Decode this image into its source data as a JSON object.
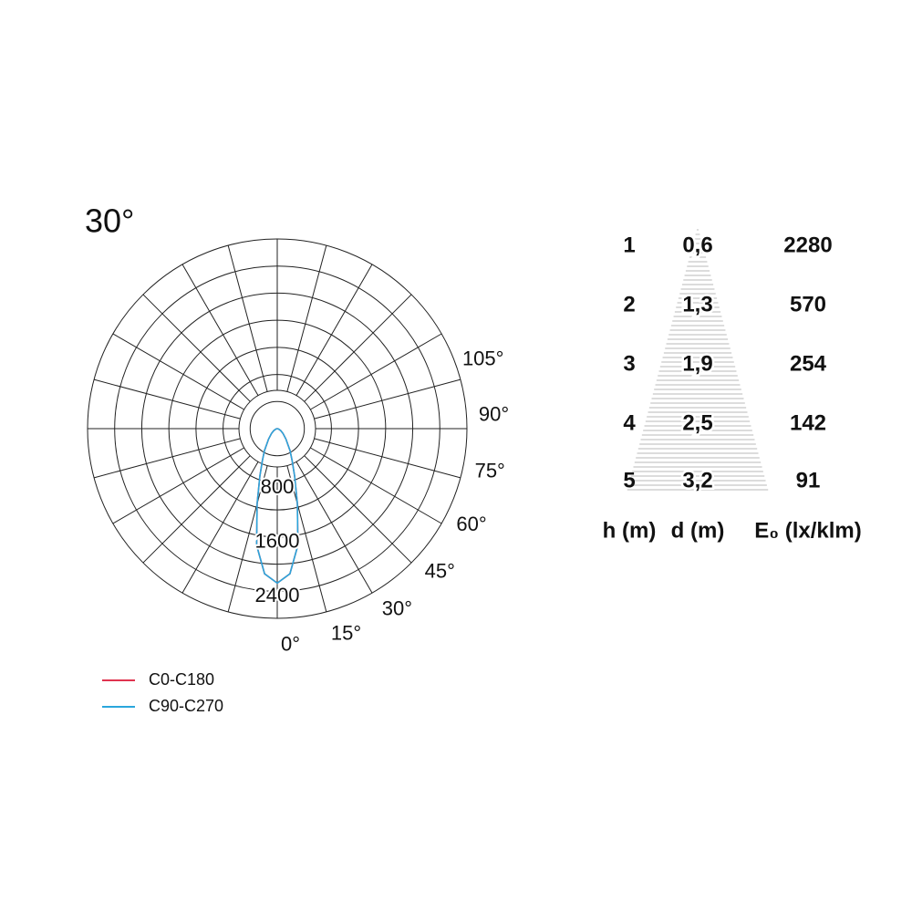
{
  "chart_data": {
    "type": "polar",
    "title": "30°",
    "angles": [
      -90,
      -75,
      -60,
      -50,
      -40,
      -30,
      -25,
      -20,
      -15,
      -10,
      -5,
      0,
      5,
      10,
      15,
      20,
      25,
      30,
      40,
      50,
      60,
      75,
      90
    ],
    "series": [
      {
        "name": "C0-C180",
        "color": "#e0344f",
        "values": [
          0,
          20,
          60,
          110,
          200,
          380,
          520,
          750,
          1150,
          1750,
          2150,
          2280,
          2150,
          1750,
          1150,
          750,
          520,
          380,
          200,
          110,
          60,
          20,
          0
        ]
      },
      {
        "name": "C90-C270",
        "color": "#2aa6dc",
        "values": [
          0,
          20,
          60,
          110,
          200,
          380,
          520,
          750,
          1150,
          1750,
          2150,
          2280,
          2150,
          1750,
          1150,
          750,
          520,
          380,
          200,
          110,
          60,
          20,
          0
        ]
      }
    ],
    "rlim": [
      0,
      2800
    ],
    "rticks": [
      {
        "value": 400,
        "label": null
      },
      800,
      {
        "value": 1200,
        "label": null
      },
      1600,
      {
        "value": 2000,
        "label": null
      },
      2400,
      {
        "value": 2800,
        "label": null
      }
    ],
    "aticks": [
      {
        "value": 0,
        "label": "0°"
      },
      {
        "value": 15,
        "label": "15°"
      },
      {
        "value": 30,
        "label": "30°"
      },
      {
        "value": 45,
        "label": "45°"
      },
      {
        "value": 60,
        "label": "60°"
      },
      {
        "value": 75,
        "label": "75°"
      },
      {
        "value": 90,
        "label": "90°"
      },
      {
        "value": 105,
        "label": "105°"
      },
      {
        "value": 120,
        "label": null
      },
      {
        "value": 135,
        "label": null
      },
      {
        "value": 150,
        "label": null
      },
      {
        "value": 165,
        "label": null
      },
      {
        "value": 180,
        "label": null
      }
    ]
  },
  "table": {
    "header": [
      "h (m)",
      "d (m)",
      "E₀ (lx/klm)"
    ],
    "rows": [
      [
        "1",
        "0,6",
        "2280"
      ],
      [
        "2",
        "1,3",
        "570"
      ],
      [
        "3",
        "1,9",
        "254"
      ],
      [
        "4",
        "2,5",
        "142"
      ],
      [
        "5",
        "3,2",
        "91"
      ]
    ]
  }
}
